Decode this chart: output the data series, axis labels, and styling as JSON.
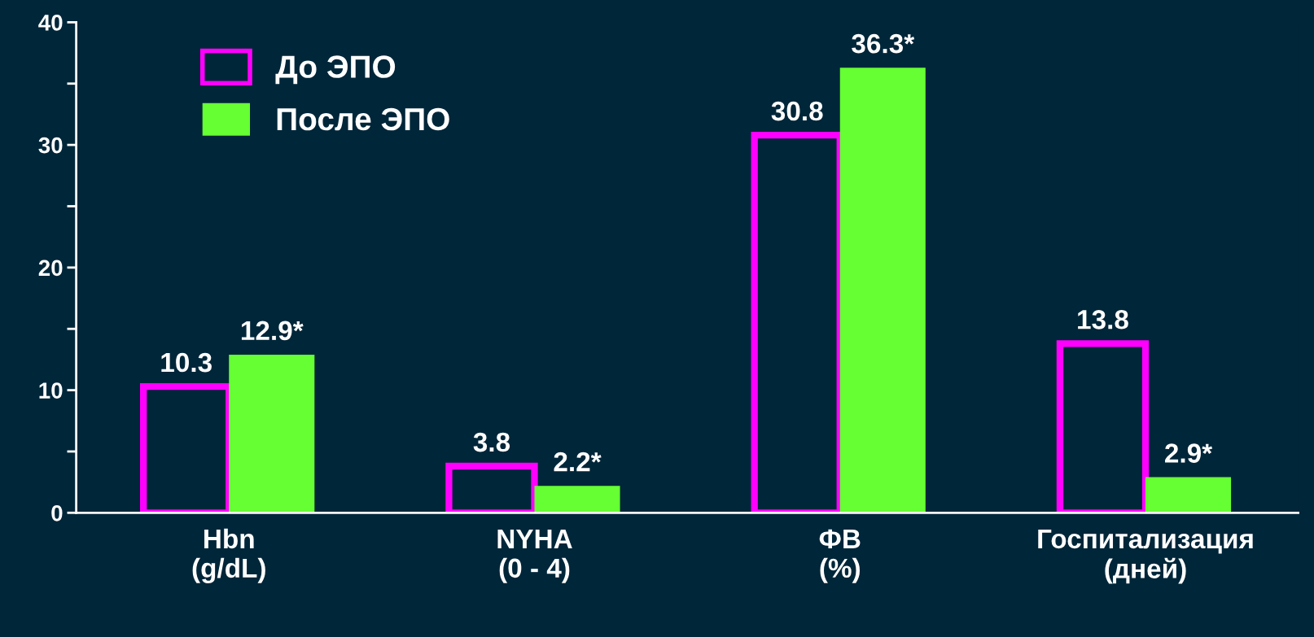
{
  "chart_data": {
    "type": "bar",
    "categories": [
      "Hbn\n(g/dL)",
      "NYHA\n(0 - 4)",
      "ФВ\n(%)",
      "Госпитализация\n(дней)"
    ],
    "series": [
      {
        "name": "До ЭПО",
        "color": "#ff00ff",
        "values": [
          10.3,
          3.8,
          30.8,
          13.8
        ],
        "value_labels": [
          "10.3",
          "3.8",
          "30.8",
          "13.8"
        ]
      },
      {
        "name": "После ЭПО",
        "color": "#66ff33",
        "values": [
          12.9,
          2.2,
          36.3,
          2.9
        ],
        "value_labels": [
          "12.9*",
          "2.2*",
          "36.3*",
          "2.9*"
        ]
      }
    ],
    "ylim": [
      0,
      40
    ],
    "yticks": [
      0,
      {
        "value": 5,
        "label": null
      },
      10,
      {
        "value": 15,
        "label": null
      },
      20,
      {
        "value": 25,
        "label": null
      },
      30,
      {
        "value": 35,
        "label": null
      },
      40
    ],
    "grid": false,
    "legend": "top left"
  }
}
